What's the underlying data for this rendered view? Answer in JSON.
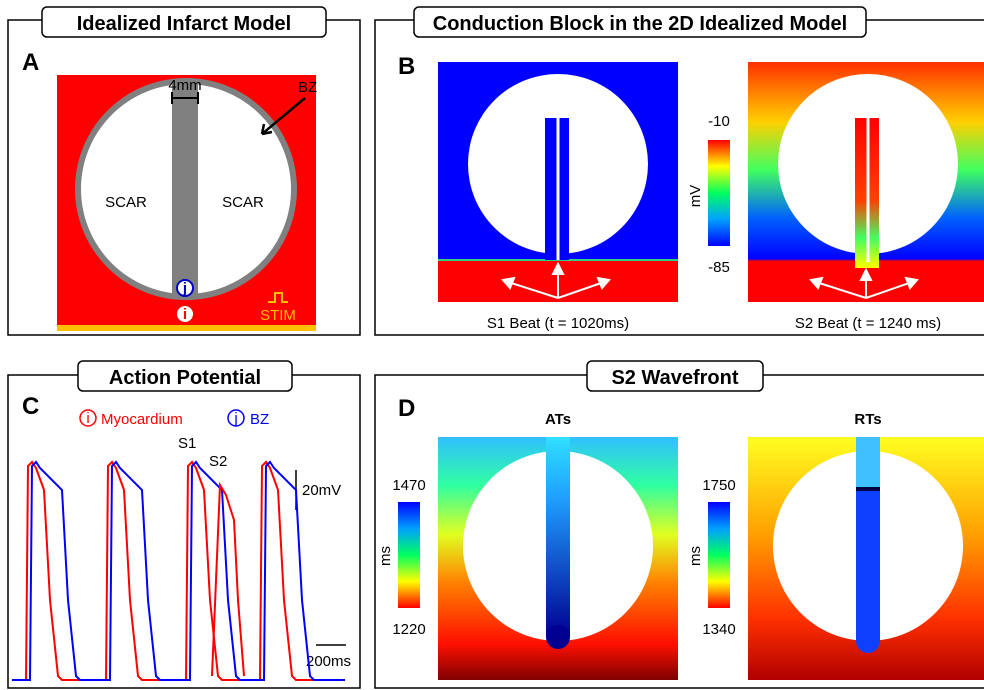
{
  "panel_a": {
    "letter": "A",
    "title": "Idealized Infarct Model",
    "width_label": "4mm",
    "bz_label": "BZ",
    "scar_left": "SCAR",
    "scar_right": "SCAR",
    "stim_label": "STIM",
    "marker_j": "j",
    "marker_i": "i"
  },
  "panel_b": {
    "letter": "B",
    "title": "Conduction Block in the 2D Idealized Model",
    "colorbar": {
      "max": -10,
      "min": -85,
      "unit": "mV"
    },
    "captions": [
      "S1 Beat (t = 1020ms)",
      "S2 Beat (t = 1240 ms)"
    ]
  },
  "panel_c": {
    "letter": "C",
    "title": "Action Potential",
    "legend": [
      {
        "marker": "i",
        "label": "Myocardium"
      },
      {
        "marker": "j",
        "label": "BZ"
      }
    ],
    "beat_labels": [
      "S1",
      "S2"
    ],
    "scale_voltage": "20mV",
    "scale_time": "200ms"
  },
  "panel_d": {
    "letter": "D",
    "title": "S2 Wavefront",
    "maps": [
      {
        "title": "ATs",
        "colorbar": {
          "max": 1470,
          "min": 1220,
          "unit": "ms"
        }
      },
      {
        "title": "RTs",
        "colorbar": {
          "max": 1750,
          "min": 1340,
          "unit": "ms"
        }
      }
    ]
  }
}
